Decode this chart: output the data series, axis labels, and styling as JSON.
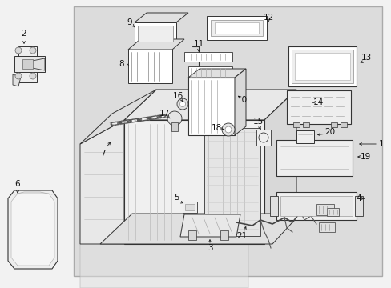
{
  "bg_color": "#f2f2f2",
  "box_bg": "#dcdcdc",
  "box_edge": "#999999",
  "line_color": "#333333",
  "thin_line": "#555555",
  "white": "#ffffff",
  "light_gray": "#eeeeee",
  "mid_gray": "#cccccc",
  "dark_gray": "#444444",
  "label_fs": 7.5,
  "callout_arrow_color": "#222222"
}
